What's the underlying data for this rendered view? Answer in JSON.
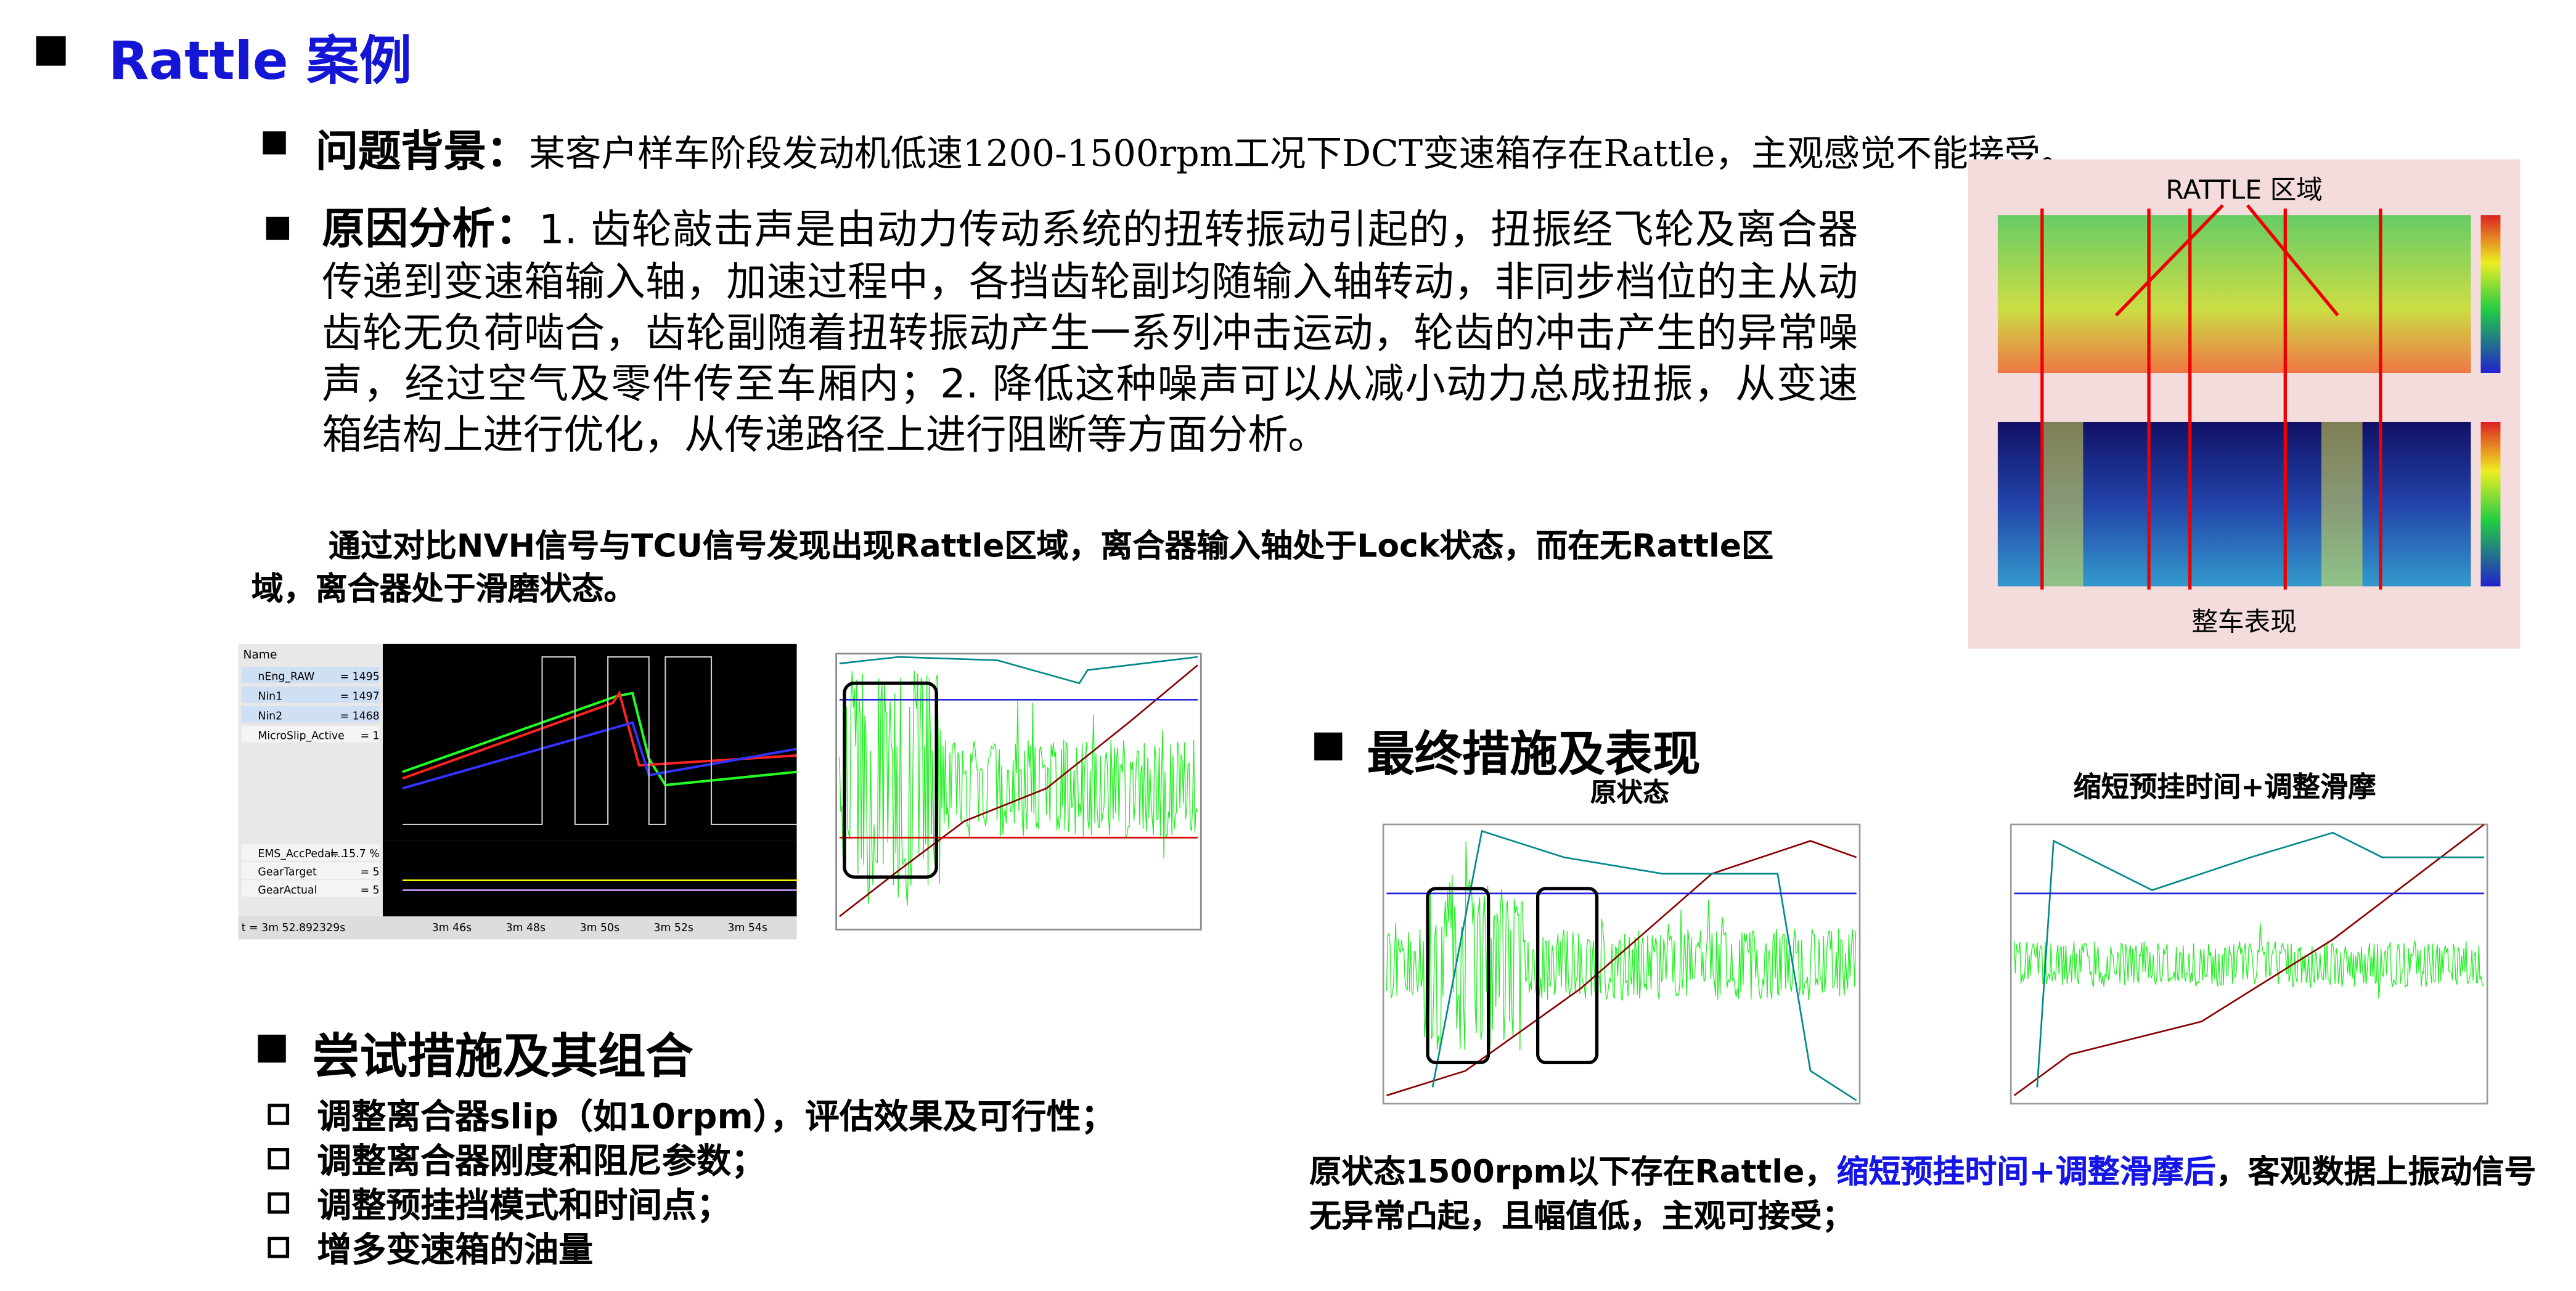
{
  "title": "Rattle 案例",
  "background": {
    "label": "问题背景：",
    "text": "某客户样车阶段发动机低速1200-1500rpm工况下DCT变速箱存在Rattle，主观感觉不能接受。"
  },
  "cause": {
    "label": "原因分析：",
    "text": "1. 齿轮敲击声是由动力传动系统的扭转振动引起的，扭振经飞轮及离合器传递到变速箱输入轴，加速过程中，各挡齿轮副均随输入轴转动，非同步档位的主从动齿轮无负荷啮合，齿轮副随着扭转振动产生一系列冲击运动，轮齿的冲击产生的异常噪声，经过空气及零件传至车厢内；2. 降低这种噪声可以从减小动力总成扭振，从变速箱结构上进行优化，从传递路径上进行阻断等方面分析。"
  },
  "finding": "通过对比NVH信号与TCU信号发现出现Rattle区域，离合器输入轴处于Lock状态，而在无Rattle区域，离合器处于滑磨状态。",
  "screenshot": {
    "channels": [
      "nEng_RAW",
      "Nin1",
      "Nin2",
      "MicroSlip_Active",
      "EMS_AccPedal...",
      "GearTarget",
      "GearActual"
    ],
    "readings": [
      "= 1495",
      "= 1497",
      "= 1468",
      "= 1",
      "= 15.7 %",
      "= 5",
      "= 5"
    ],
    "time": "t = 3m 52.892329s",
    "ticks": [
      "3m 46s",
      "3m 48s",
      "3m 50s",
      "3m 52s",
      "3m 54s"
    ]
  },
  "spectrogram": {
    "top_label": "RATTLE 区域",
    "bottom_label": "整车表现"
  },
  "attempts": {
    "heading": "尝试措施及其组合",
    "items": [
      "调整离合器slip（如10rpm），评估效果及可行性；",
      "调整离合器刚度和阻尼参数；",
      "调整预挂挡模式和时间点；",
      "增多变速箱的油量"
    ]
  },
  "final": {
    "heading": "最终措施及表现",
    "before_label": "原状态",
    "after_label": "缩短预挂时间+调整滑摩",
    "conclusion": [
      "原状态1500rpm以下存在Rattle，",
      "缩短预挂时间+调整滑摩后",
      "，客观数据上振动信号无异常凸起，且幅值低，主观可接受；"
    ]
  }
}
